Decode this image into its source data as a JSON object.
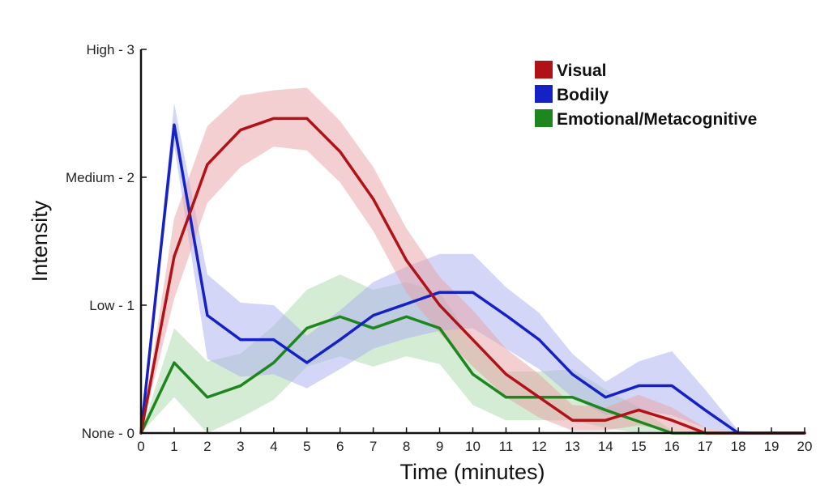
{
  "chart_data": {
    "type": "line",
    "title": "",
    "xlabel": "Time (minutes)",
    "ylabel": "Intensity",
    "xlim": [
      0,
      20
    ],
    "ylim": [
      0,
      3
    ],
    "x_ticks": [
      0,
      1,
      2,
      3,
      4,
      5,
      6,
      7,
      8,
      9,
      10,
      11,
      12,
      13,
      14,
      15,
      16,
      17,
      18,
      19,
      20
    ],
    "y_ticks": [
      {
        "value": 0,
        "label": "None - 0"
      },
      {
        "value": 1,
        "label": "Low - 1"
      },
      {
        "value": 2,
        "label": "Medium - 2"
      },
      {
        "value": 3,
        "label": "High - 3"
      }
    ],
    "grid": false,
    "legend_position": "top-right",
    "x": [
      0,
      1,
      2,
      3,
      4,
      5,
      6,
      7,
      8,
      9,
      10,
      11,
      12,
      13,
      14,
      15,
      16,
      17,
      18,
      19,
      20
    ],
    "series": [
      {
        "name": "Visual",
        "color": "#b01217",
        "band_color": "#e8a0a3",
        "values": [
          0,
          1.38,
          2.1,
          2.37,
          2.46,
          2.46,
          2.2,
          1.83,
          1.35,
          1.0,
          0.73,
          0.46,
          0.28,
          0.1,
          0.1,
          0.18,
          0.1,
          0.0,
          0,
          0,
          0
        ],
        "lower": [
          0,
          1.05,
          1.8,
          2.08,
          2.24,
          2.21,
          1.96,
          1.58,
          1.1,
          0.78,
          0.52,
          0.28,
          0.12,
          0.02,
          0.02,
          0.06,
          0.02,
          0.0,
          0,
          0,
          0
        ],
        "upper": [
          0,
          1.68,
          2.4,
          2.64,
          2.68,
          2.7,
          2.44,
          2.08,
          1.6,
          1.22,
          0.96,
          0.66,
          0.46,
          0.22,
          0.2,
          0.3,
          0.2,
          0.04,
          0,
          0,
          0
        ]
      },
      {
        "name": "Bodily",
        "color": "#1521c4",
        "band_color": "#a9aef0",
        "values": [
          0,
          2.41,
          0.92,
          0.73,
          0.73,
          0.55,
          0.73,
          0.92,
          1.01,
          1.1,
          1.1,
          0.92,
          0.73,
          0.46,
          0.28,
          0.37,
          0.37,
          0.18,
          0.0,
          0,
          0
        ],
        "lower": [
          0,
          2.25,
          0.58,
          0.44,
          0.46,
          0.35,
          0.5,
          0.66,
          0.74,
          0.8,
          0.82,
          0.66,
          0.5,
          0.28,
          0.14,
          0.18,
          0.14,
          0.04,
          0.0,
          0,
          0
        ],
        "upper": [
          0,
          2.58,
          1.24,
          1.02,
          1.0,
          0.76,
          0.96,
          1.18,
          1.3,
          1.4,
          1.4,
          1.14,
          0.94,
          0.62,
          0.4,
          0.56,
          0.64,
          0.34,
          0.02,
          0,
          0
        ]
      },
      {
        "name": "Emotional/Metacognitive",
        "color": "#1e861e",
        "band_color": "#a9d8a9",
        "values": [
          0,
          0.55,
          0.28,
          0.37,
          0.55,
          0.82,
          0.91,
          0.82,
          0.91,
          0.82,
          0.46,
          0.28,
          0.28,
          0.28,
          0.18,
          0.09,
          0.0,
          0,
          0,
          0,
          0
        ],
        "lower": [
          0,
          0.28,
          0.0,
          0.12,
          0.26,
          0.52,
          0.6,
          0.52,
          0.6,
          0.54,
          0.22,
          0.1,
          0.1,
          0.1,
          0.04,
          0.0,
          0.0,
          0,
          0,
          0,
          0
        ],
        "upper": [
          0,
          0.82,
          0.56,
          0.62,
          0.84,
          1.12,
          1.24,
          1.12,
          1.18,
          1.1,
          0.72,
          0.48,
          0.48,
          0.5,
          0.34,
          0.2,
          0.02,
          0,
          0,
          0,
          0
        ]
      }
    ]
  }
}
